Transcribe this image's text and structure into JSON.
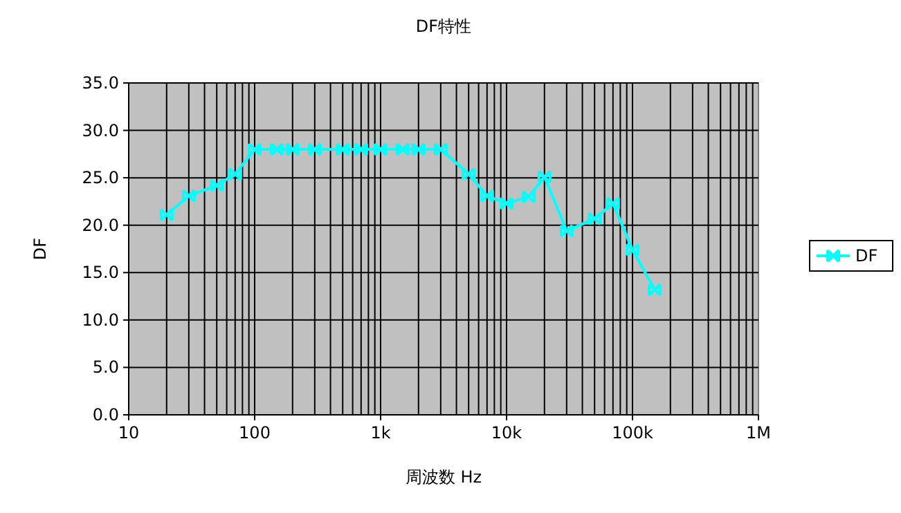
{
  "chart_data": {
    "type": "line",
    "title": "DF特性",
    "xlabel": "周波数 Hz",
    "ylabel": "DF",
    "x": [
      20,
      30,
      50,
      70,
      100,
      150,
      200,
      300,
      500,
      700,
      1000,
      1500,
      2000,
      3000,
      5000,
      7000,
      10000,
      15000,
      20000,
      30000,
      50000,
      70000,
      100000,
      150000
    ],
    "series": [
      {
        "name": "DF",
        "color": "#00ffff",
        "values": [
          21.1,
          23.1,
          24.2,
          25.4,
          28.0,
          28.0,
          28.0,
          28.0,
          28.0,
          28.0,
          28.0,
          28.0,
          28.0,
          28.0,
          25.4,
          23.1,
          22.3,
          23.0,
          25.1,
          19.4,
          20.7,
          22.3,
          17.4,
          13.2
        ]
      }
    ],
    "log": "x",
    "xlim": [
      10,
      1000000
    ],
    "xticks": [
      10,
      100,
      {
        "value": 1000,
        "label": "1k"
      },
      {
        "value": 10000,
        "label": "10k"
      },
      {
        "value": 100000,
        "label": "100k"
      },
      {
        "value": 1000000,
        "label": "1M"
      }
    ],
    "ylim": [
      0,
      35
    ],
    "yticks": [
      {
        "value": 0,
        "label": "0.0"
      },
      {
        "value": 5,
        "label": "5.0"
      },
      {
        "value": 10,
        "label": "10.0"
      },
      {
        "value": 15,
        "label": "15.0"
      },
      {
        "value": 20,
        "label": "20.0"
      },
      {
        "value": 25,
        "label": "25.0"
      },
      {
        "value": 30,
        "label": "30.0"
      },
      {
        "value": 35,
        "label": "35.0"
      }
    ],
    "grid": true,
    "legend": "right",
    "marker": "cross",
    "line_style": "solid"
  }
}
